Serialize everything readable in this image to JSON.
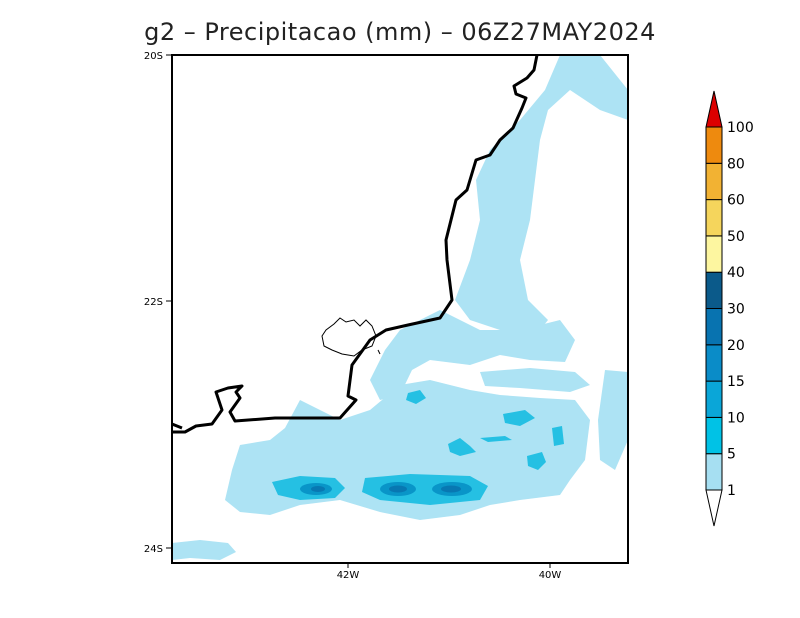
{
  "title": "g2 – Precipitacao (mm) – 06Z27MAY2024",
  "axes": {
    "lat_ticks": [
      "20S",
      "22S",
      "24S"
    ],
    "lon_ticks": [
      "42W",
      "40W"
    ]
  },
  "colorbar": {
    "labels": [
      "1",
      "5",
      "10",
      "15",
      "20",
      "30",
      "40",
      "50",
      "60",
      "80",
      "100"
    ],
    "colors": [
      "#ffffff",
      "#a6dff2",
      "#00c2e6",
      "#0aa6d8",
      "#0a8cc8",
      "#0873b0",
      "#0b5a8a",
      "#fdf6a0",
      "#f5d55c",
      "#f2b233",
      "#ee8a0e",
      "#dc0000"
    ]
  },
  "legend_palette": {
    "light": "#ade3f4",
    "mid": "#25c0e3",
    "dark": "#0995c8",
    "darker": "#0878b2",
    "coast": "#000000"
  }
}
